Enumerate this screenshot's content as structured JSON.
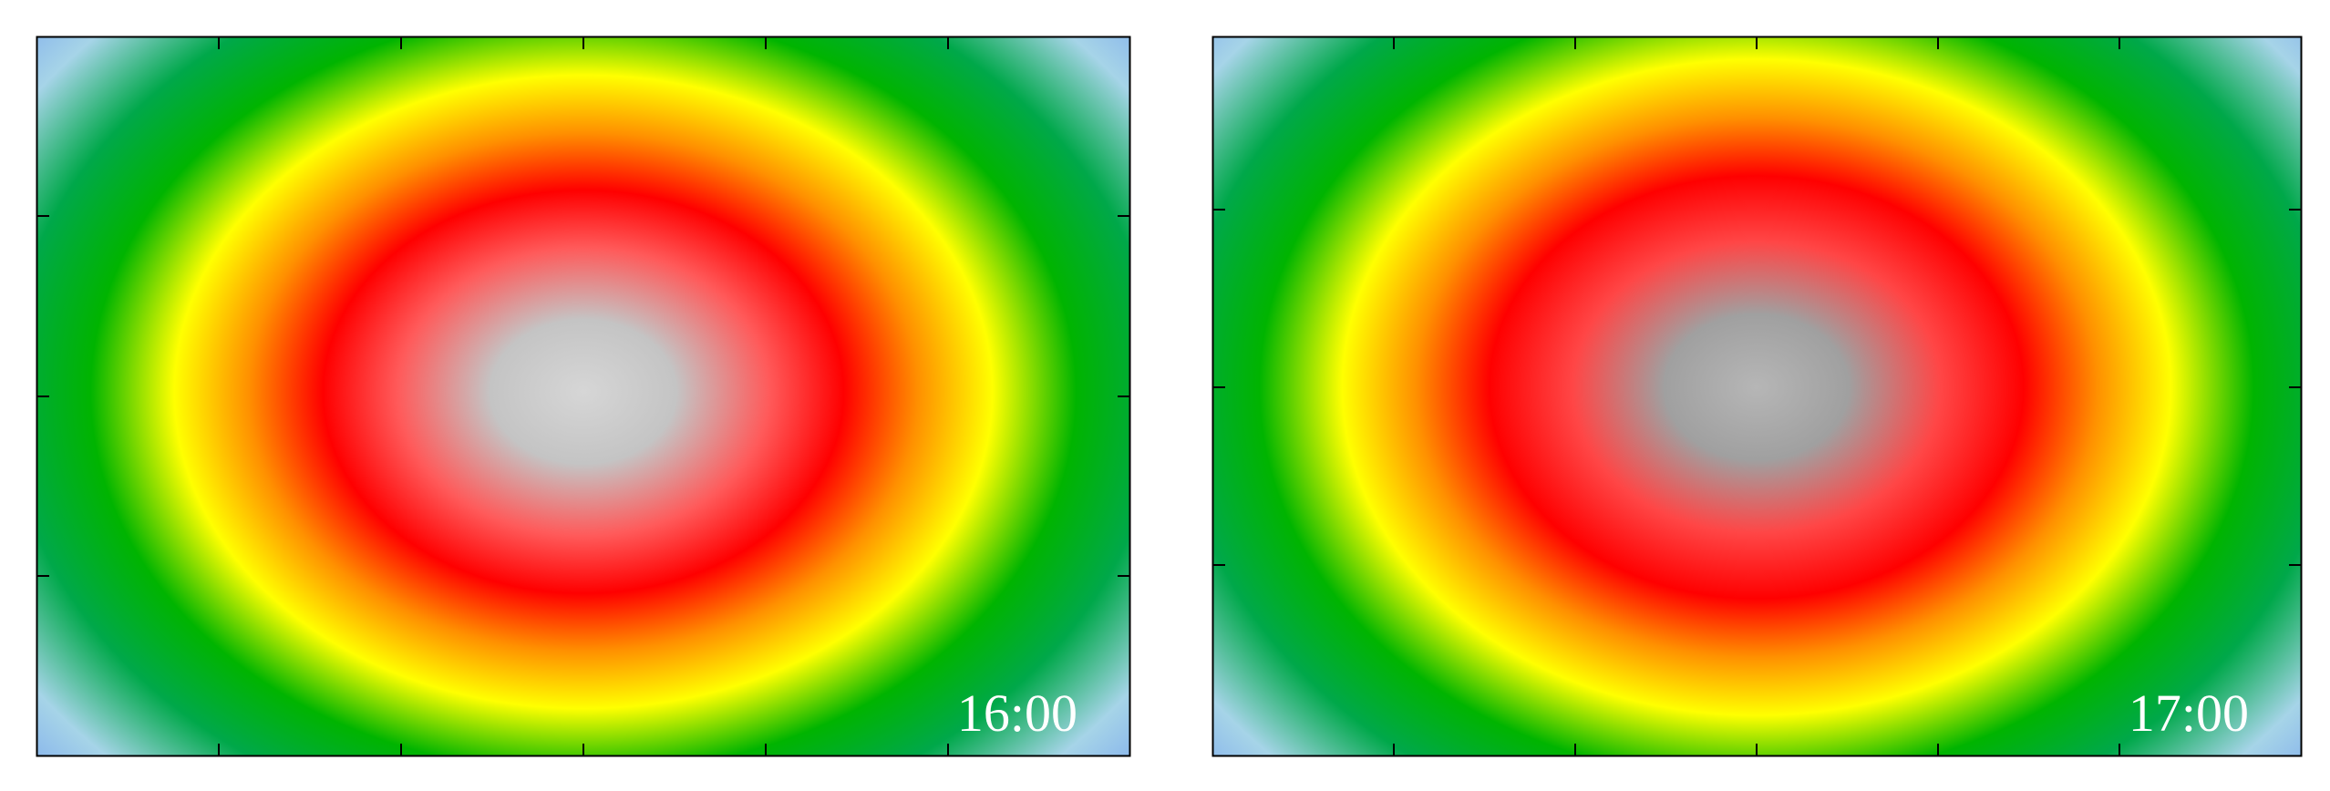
{
  "chart_data": [
    {
      "type": "heatmap",
      "title": "",
      "xlabel": "",
      "ylabel": "",
      "tick_labels_shown": false,
      "annotation": "16:00",
      "pattern": "radial",
      "colormap": [
        {
          "stop": 0.0,
          "color": "#d6d6d6"
        },
        {
          "stop": 0.1,
          "color": "#c4c4c4"
        },
        {
          "stop": 0.2,
          "color": "#ff5a5a"
        },
        {
          "stop": 0.28,
          "color": "#ff0000"
        },
        {
          "stop": 0.36,
          "color": "#ff9000"
        },
        {
          "stop": 0.44,
          "color": "#ffff00"
        },
        {
          "stop": 0.53,
          "color": "#00b400"
        },
        {
          "stop": 0.62,
          "color": "#00a84a"
        },
        {
          "stop": 0.72,
          "color": "#a6d4e8"
        },
        {
          "stop": 0.85,
          "color": "#6a96ee"
        },
        {
          "stop": 1.0,
          "color": "#0010ee"
        }
      ]
    },
    {
      "type": "heatmap",
      "title": "",
      "xlabel": "",
      "ylabel": "",
      "tick_labels_shown": false,
      "annotation": "17:00",
      "pattern": "radial",
      "colormap": [
        {
          "stop": 0.0,
          "color": "#b6b6b6"
        },
        {
          "stop": 0.1,
          "color": "#a0a0a0"
        },
        {
          "stop": 0.2,
          "color": "#ff4646"
        },
        {
          "stop": 0.29,
          "color": "#ff0000"
        },
        {
          "stop": 0.37,
          "color": "#ff9000"
        },
        {
          "stop": 0.45,
          "color": "#ffff00"
        },
        {
          "stop": 0.54,
          "color": "#00b400"
        },
        {
          "stop": 0.63,
          "color": "#00a84a"
        },
        {
          "stop": 0.73,
          "color": "#a6d4e8"
        },
        {
          "stop": 0.86,
          "color": "#6a96ee"
        },
        {
          "stop": 1.0,
          "color": "#0010ee"
        }
      ]
    }
  ]
}
